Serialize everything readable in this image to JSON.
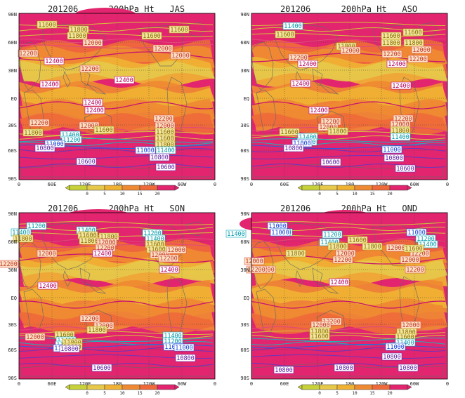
{
  "colors": {
    "scale": [
      "#c7d23a",
      "#e6c84a",
      "#f0b232",
      "#ef8a32",
      "#ef6a3a",
      "#e2256e"
    ],
    "land_outline": "#666666",
    "grid": "#444444"
  },
  "colorbar_ticks": [
    "0",
    "5",
    "10",
    "15",
    "20"
  ],
  "lat_labels": [
    "90N",
    "60N",
    "30N",
    "EQ",
    "30S",
    "60S",
    "90S"
  ],
  "lon_labels": [
    "0",
    "60E",
    "120E",
    "180",
    "120W",
    "60W",
    "0"
  ],
  "panels": [
    {
      "date": "201206",
      "variable": "200hPa Ht",
      "season": "JAS",
      "labels": [
        {
          "text": "11600",
          "kind": "yellow"
        },
        {
          "text": "11800",
          "kind": "yellow"
        },
        {
          "text": "11600",
          "kind": "yellow"
        },
        {
          "text": "11800",
          "kind": "yellow"
        },
        {
          "text": "11600",
          "kind": "yellow"
        },
        {
          "text": "12000",
          "kind": "red"
        },
        {
          "text": "12000",
          "kind": "red"
        },
        {
          "text": "12200",
          "kind": "red"
        },
        {
          "text": "12000",
          "kind": "red"
        },
        {
          "text": "12400",
          "kind": "magenta"
        },
        {
          "text": "12200",
          "kind": "red"
        },
        {
          "text": "12400",
          "kind": "magenta"
        },
        {
          "text": "12400",
          "kind": "magenta"
        },
        {
          "text": "12400",
          "kind": "magenta"
        },
        {
          "text": "12400",
          "kind": "magenta"
        },
        {
          "text": "12200",
          "kind": "red"
        },
        {
          "text": "12200",
          "kind": "red"
        },
        {
          "text": "12000",
          "kind": "red"
        },
        {
          "text": "11800",
          "kind": "yellow"
        },
        {
          "text": "11600",
          "kind": "yellow"
        },
        {
          "text": "12000",
          "kind": "red"
        },
        {
          "text": "11600",
          "kind": "yellow"
        },
        {
          "text": "11600",
          "kind": "yellow"
        },
        {
          "text": "11800",
          "kind": "yellow"
        },
        {
          "text": "11400",
          "kind": "cyan"
        },
        {
          "text": "11200",
          "kind": "cyan"
        },
        {
          "text": "11000",
          "kind": "blue"
        },
        {
          "text": "11400",
          "kind": "cyan"
        },
        {
          "text": "10800",
          "kind": "purple"
        },
        {
          "text": "11000",
          "kind": "blue"
        },
        {
          "text": "10800",
          "kind": "purple"
        },
        {
          "text": "10600",
          "kind": "purple"
        },
        {
          "text": "10600",
          "kind": "purple"
        }
      ]
    },
    {
      "date": "201206",
      "variable": "200hPa Ht",
      "season": "ASO",
      "labels": [
        {
          "text": "11400",
          "kind": "cyan"
        },
        {
          "text": "11600",
          "kind": "yellow"
        },
        {
          "text": "11600",
          "kind": "yellow"
        },
        {
          "text": "11600",
          "kind": "yellow"
        },
        {
          "text": "11800",
          "kind": "yellow"
        },
        {
          "text": "11800",
          "kind": "yellow"
        },
        {
          "text": "12000",
          "kind": "red"
        },
        {
          "text": "11800",
          "kind": "yellow"
        },
        {
          "text": "12000",
          "kind": "red"
        },
        {
          "text": "12200",
          "kind": "red"
        },
        {
          "text": "12200",
          "kind": "red"
        },
        {
          "text": "12200",
          "kind": "red"
        },
        {
          "text": "12400",
          "kind": "magenta"
        },
        {
          "text": "12400",
          "kind": "magenta"
        },
        {
          "text": "12400",
          "kind": "magenta"
        },
        {
          "text": "12400",
          "kind": "magenta"
        },
        {
          "text": "12400",
          "kind": "magenta"
        },
        {
          "text": "12200",
          "kind": "red"
        },
        {
          "text": "12200",
          "kind": "red"
        },
        {
          "text": "12000",
          "kind": "red"
        },
        {
          "text": "12000",
          "kind": "red"
        },
        {
          "text": "11800",
          "kind": "yellow"
        },
        {
          "text": "11600",
          "kind": "yellow"
        },
        {
          "text": "11800",
          "kind": "yellow"
        },
        {
          "text": "11400",
          "kind": "cyan"
        },
        {
          "text": "11200",
          "kind": "cyan"
        },
        {
          "text": "11400",
          "kind": "cyan"
        },
        {
          "text": "11000",
          "kind": "blue"
        },
        {
          "text": "10800",
          "kind": "purple"
        },
        {
          "text": "11000",
          "kind": "blue"
        },
        {
          "text": "10800",
          "kind": "purple"
        },
        {
          "text": "10600",
          "kind": "purple"
        },
        {
          "text": "10600",
          "kind": "purple"
        }
      ]
    },
    {
      "date": "201206",
      "variable": "200hPa Ht",
      "season": "SON",
      "labels": [
        {
          "text": "11200",
          "kind": "cyan"
        },
        {
          "text": "11400",
          "kind": "cyan"
        },
        {
          "text": "11200",
          "kind": "cyan"
        },
        {
          "text": "11400",
          "kind": "cyan"
        },
        {
          "text": "11800",
          "kind": "yellow"
        },
        {
          "text": "11400",
          "kind": "cyan"
        },
        {
          "text": "11600",
          "kind": "yellow"
        },
        {
          "text": "11600",
          "kind": "yellow"
        },
        {
          "text": "11800",
          "kind": "yellow"
        },
        {
          "text": "11600",
          "kind": "yellow"
        },
        {
          "text": "11800",
          "kind": "yellow"
        },
        {
          "text": "12000",
          "kind": "red"
        },
        {
          "text": "12000",
          "kind": "red"
        },
        {
          "text": "12000",
          "kind": "red"
        },
        {
          "text": "12000",
          "kind": "red"
        },
        {
          "text": "12200",
          "kind": "red"
        },
        {
          "text": "12200",
          "kind": "red"
        },
        {
          "text": "12200",
          "kind": "red"
        },
        {
          "text": "12400",
          "kind": "magenta"
        },
        {
          "text": "12400",
          "kind": "magenta"
        },
        {
          "text": "12400",
          "kind": "magenta"
        },
        {
          "text": "12200",
          "kind": "red"
        },
        {
          "text": "12000",
          "kind": "red"
        },
        {
          "text": "11800",
          "kind": "yellow"
        },
        {
          "text": "11600",
          "kind": "yellow"
        },
        {
          "text": "11400",
          "kind": "cyan"
        },
        {
          "text": "11200",
          "kind": "cyan"
        },
        {
          "text": "11000",
          "kind": "blue"
        },
        {
          "text": "12000",
          "kind": "red"
        },
        {
          "text": "11800",
          "kind": "yellow"
        },
        {
          "text": "11600",
          "kind": "yellow"
        },
        {
          "text": "11400",
          "kind": "cyan"
        },
        {
          "text": "11200",
          "kind": "cyan"
        },
        {
          "text": "11000",
          "kind": "blue"
        },
        {
          "text": "10800",
          "kind": "purple"
        },
        {
          "text": "11000",
          "kind": "blue"
        },
        {
          "text": "10800",
          "kind": "purple"
        },
        {
          "text": "10600",
          "kind": "purple"
        }
      ]
    },
    {
      "date": "201206",
      "variable": "200hPa Ht",
      "season": "OND",
      "labels": [
        {
          "text": "11000",
          "kind": "blue"
        },
        {
          "text": "11200",
          "kind": "cyan"
        },
        {
          "text": "11400",
          "kind": "cyan"
        },
        {
          "text": "11000",
          "kind": "blue"
        },
        {
          "text": "11200",
          "kind": "cyan"
        },
        {
          "text": "11400",
          "kind": "cyan"
        },
        {
          "text": "11000",
          "kind": "blue"
        },
        {
          "text": "11200",
          "kind": "cyan"
        },
        {
          "text": "11400",
          "kind": "cyan"
        },
        {
          "text": "11600",
          "kind": "yellow"
        },
        {
          "text": "11800",
          "kind": "yellow"
        },
        {
          "text": "12000",
          "kind": "red"
        },
        {
          "text": "12200",
          "kind": "red"
        },
        {
          "text": "11800",
          "kind": "yellow"
        },
        {
          "text": "12000",
          "kind": "red"
        },
        {
          "text": "11800",
          "kind": "yellow"
        },
        {
          "text": "12200",
          "kind": "red"
        },
        {
          "text": "12000",
          "kind": "red"
        },
        {
          "text": "11600",
          "kind": "yellow"
        },
        {
          "text": "12200",
          "kind": "red"
        },
        {
          "text": "12000",
          "kind": "red"
        },
        {
          "text": "12200",
          "kind": "red"
        },
        {
          "text": "12200",
          "kind": "red"
        },
        {
          "text": "12400",
          "kind": "magenta"
        },
        {
          "text": "12200",
          "kind": "red"
        },
        {
          "text": "12000",
          "kind": "red"
        },
        {
          "text": "11800",
          "kind": "yellow"
        },
        {
          "text": "11600",
          "kind": "yellow"
        },
        {
          "text": "12000",
          "kind": "red"
        },
        {
          "text": "11800",
          "kind": "yellow"
        },
        {
          "text": "11600",
          "kind": "yellow"
        },
        {
          "text": "11400",
          "kind": "cyan"
        },
        {
          "text": "11000",
          "kind": "blue"
        },
        {
          "text": "10800",
          "kind": "purple"
        },
        {
          "text": "10800",
          "kind": "purple"
        },
        {
          "text": "10800",
          "kind": "purple"
        },
        {
          "text": "10800",
          "kind": "purple"
        }
      ]
    }
  ]
}
